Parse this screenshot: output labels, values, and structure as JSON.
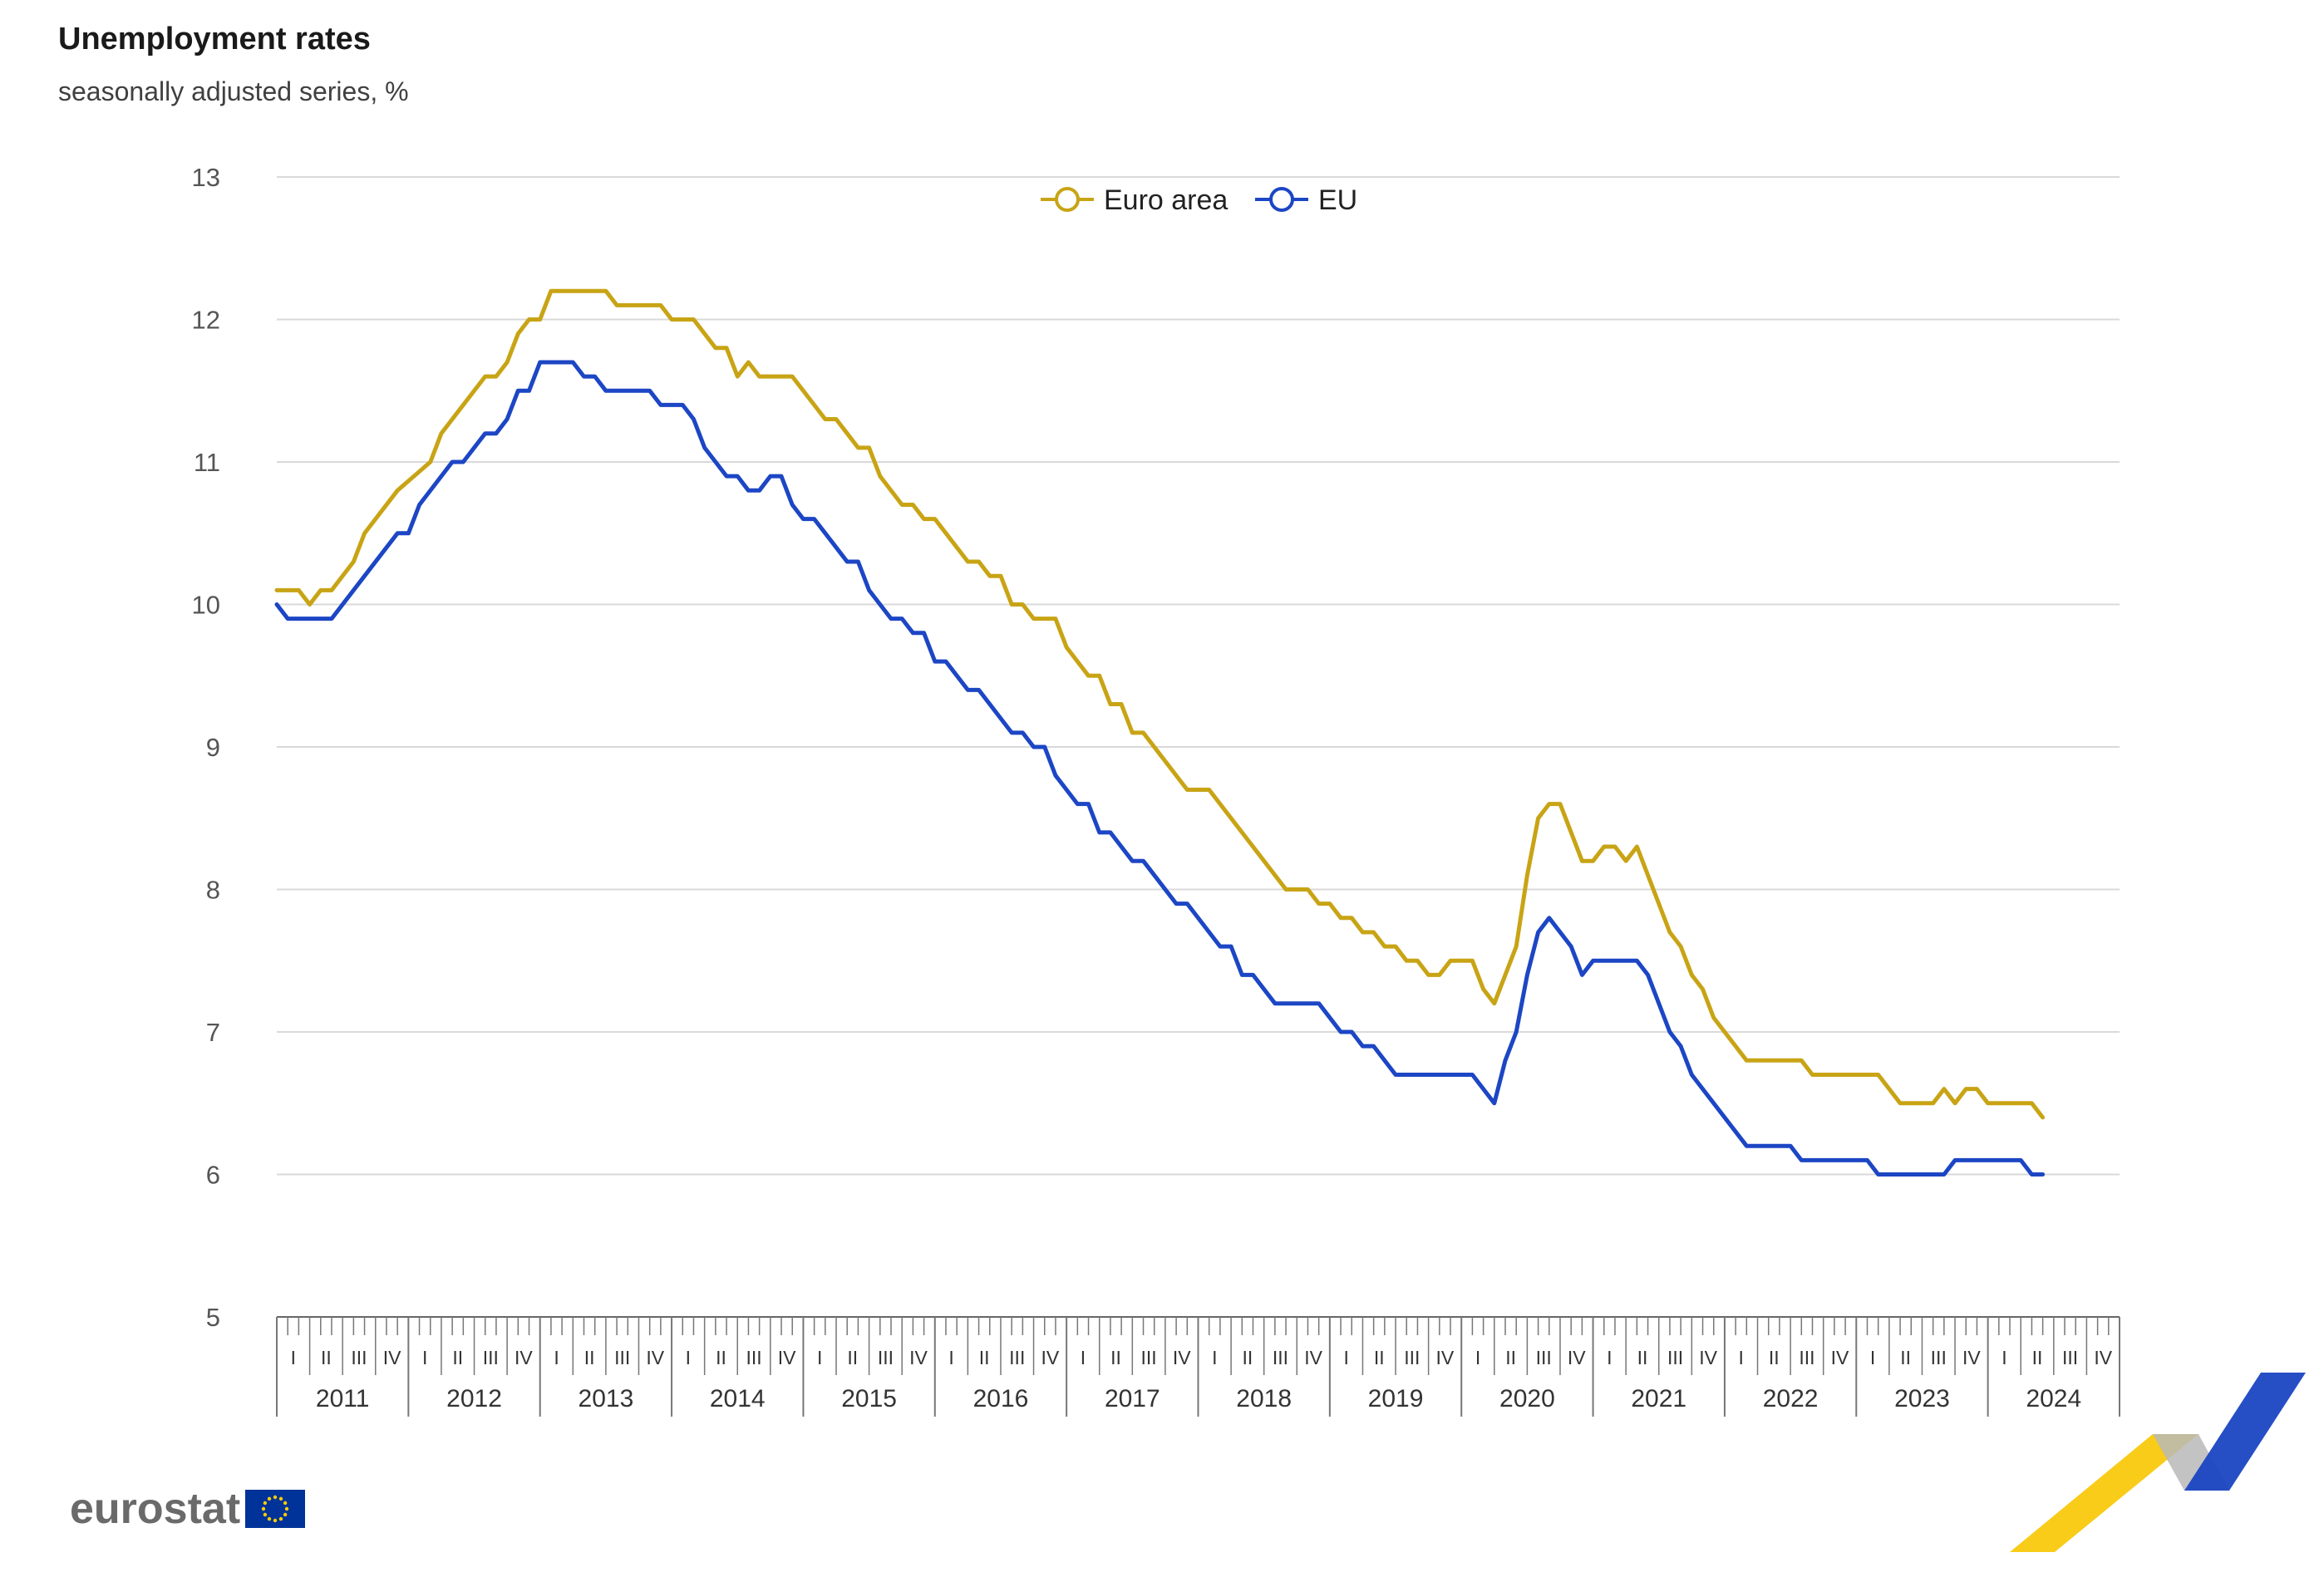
{
  "chart_data": {
    "type": "line",
    "title": "Unemployment rates",
    "subtitle": "seasonally adjusted series, %",
    "ylim": [
      5,
      13
    ],
    "yticks": [
      5,
      6,
      7,
      8,
      9,
      10,
      11,
      12,
      13
    ],
    "grid": true,
    "legend_position": "top-center",
    "x_start": "2011-01",
    "x_end": "2024-12",
    "years": [
      "2011",
      "2012",
      "2013",
      "2014",
      "2015",
      "2016",
      "2017",
      "2018",
      "2019",
      "2020",
      "2021",
      "2022",
      "2023",
      "2024"
    ],
    "quarters": [
      "I",
      "II",
      "III",
      "IV"
    ],
    "series": [
      {
        "name": "Euro area",
        "color": "#c8a415",
        "points": [
          [
            "2011-01",
            10.1
          ],
          [
            "2011-03",
            10.1
          ],
          [
            "2011-04",
            10.0
          ],
          [
            "2011-05",
            10.1
          ],
          [
            "2011-06",
            10.1
          ],
          [
            "2011-08",
            10.3
          ],
          [
            "2011-09",
            10.5
          ],
          [
            "2011-12",
            10.8
          ],
          [
            "2012-03",
            11.0
          ],
          [
            "2012-04",
            11.2
          ],
          [
            "2012-08",
            11.6
          ],
          [
            "2012-09",
            11.6
          ],
          [
            "2012-10",
            11.7
          ],
          [
            "2012-11",
            11.9
          ],
          [
            "2012-12",
            12.0
          ],
          [
            "2013-01",
            12.0
          ],
          [
            "2013-02",
            12.2
          ],
          [
            "2013-07",
            12.2
          ],
          [
            "2013-08",
            12.1
          ],
          [
            "2013-12",
            12.1
          ],
          [
            "2014-01",
            12.0
          ],
          [
            "2014-03",
            12.0
          ],
          [
            "2014-05",
            11.8
          ],
          [
            "2014-06",
            11.8
          ],
          [
            "2014-07",
            11.6
          ],
          [
            "2014-08",
            11.7
          ],
          [
            "2014-09",
            11.6
          ],
          [
            "2014-12",
            11.6
          ],
          [
            "2015-03",
            11.3
          ],
          [
            "2015-04",
            11.3
          ],
          [
            "2015-06",
            11.1
          ],
          [
            "2015-07",
            11.1
          ],
          [
            "2015-08",
            10.9
          ],
          [
            "2015-10",
            10.7
          ],
          [
            "2015-11",
            10.7
          ],
          [
            "2015-12",
            10.6
          ],
          [
            "2016-01",
            10.6
          ],
          [
            "2016-04",
            10.3
          ],
          [
            "2016-05",
            10.3
          ],
          [
            "2016-06",
            10.2
          ],
          [
            "2016-07",
            10.2
          ],
          [
            "2016-08",
            10.0
          ],
          [
            "2016-09",
            10.0
          ],
          [
            "2016-10",
            9.9
          ],
          [
            "2016-12",
            9.9
          ],
          [
            "2017-01",
            9.7
          ],
          [
            "2017-03",
            9.5
          ],
          [
            "2017-04",
            9.5
          ],
          [
            "2017-05",
            9.3
          ],
          [
            "2017-06",
            9.3
          ],
          [
            "2017-07",
            9.1
          ],
          [
            "2017-08",
            9.1
          ],
          [
            "2017-12",
            8.7
          ],
          [
            "2018-02",
            8.7
          ],
          [
            "2018-08",
            8.1
          ],
          [
            "2018-09",
            8.0
          ],
          [
            "2018-11",
            8.0
          ],
          [
            "2018-12",
            7.9
          ],
          [
            "2019-01",
            7.9
          ],
          [
            "2019-02",
            7.8
          ],
          [
            "2019-03",
            7.8
          ],
          [
            "2019-04",
            7.7
          ],
          [
            "2019-05",
            7.7
          ],
          [
            "2019-06",
            7.6
          ],
          [
            "2019-07",
            7.6
          ],
          [
            "2019-08",
            7.5
          ],
          [
            "2019-09",
            7.5
          ],
          [
            "2019-10",
            7.4
          ],
          [
            "2019-11",
            7.4
          ],
          [
            "2019-12",
            7.5
          ],
          [
            "2020-02",
            7.5
          ],
          [
            "2020-03",
            7.3
          ],
          [
            "2020-04",
            7.2
          ],
          [
            "2020-06",
            7.6
          ],
          [
            "2020-07",
            8.1
          ],
          [
            "2020-08",
            8.5
          ],
          [
            "2020-09",
            8.6
          ],
          [
            "2020-10",
            8.6
          ],
          [
            "2020-12",
            8.2
          ],
          [
            "2021-01",
            8.2
          ],
          [
            "2021-02",
            8.3
          ],
          [
            "2021-03",
            8.3
          ],
          [
            "2021-04",
            8.2
          ],
          [
            "2021-05",
            8.3
          ],
          [
            "2021-08",
            7.7
          ],
          [
            "2021-09",
            7.6
          ],
          [
            "2021-10",
            7.4
          ],
          [
            "2021-11",
            7.3
          ],
          [
            "2021-12",
            7.1
          ],
          [
            "2022-03",
            6.8
          ],
          [
            "2022-08",
            6.8
          ],
          [
            "2022-09",
            6.7
          ],
          [
            "2022-12",
            6.7
          ],
          [
            "2023-03",
            6.7
          ],
          [
            "2023-05",
            6.5
          ],
          [
            "2023-08",
            6.5
          ],
          [
            "2023-09",
            6.6
          ],
          [
            "2023-10",
            6.5
          ],
          [
            "2023-11",
            6.6
          ],
          [
            "2023-12",
            6.6
          ],
          [
            "2024-01",
            6.5
          ],
          [
            "2024-05",
            6.5
          ],
          [
            "2024-06",
            6.4
          ]
        ]
      },
      {
        "name": "EU",
        "color": "#1c46c4",
        "points": [
          [
            "2011-01",
            10.0
          ],
          [
            "2011-02",
            9.9
          ],
          [
            "2011-06",
            9.9
          ],
          [
            "2011-09",
            10.2
          ],
          [
            "2011-12",
            10.5
          ],
          [
            "2012-01",
            10.5
          ],
          [
            "2012-02",
            10.7
          ],
          [
            "2012-05",
            11.0
          ],
          [
            "2012-06",
            11.0
          ],
          [
            "2012-08",
            11.2
          ],
          [
            "2012-09",
            11.2
          ],
          [
            "2012-10",
            11.3
          ],
          [
            "2012-11",
            11.5
          ],
          [
            "2012-12",
            11.5
          ],
          [
            "2013-01",
            11.7
          ],
          [
            "2013-04",
            11.7
          ],
          [
            "2013-05",
            11.6
          ],
          [
            "2013-06",
            11.6
          ],
          [
            "2013-07",
            11.5
          ],
          [
            "2013-11",
            11.5
          ],
          [
            "2013-12",
            11.4
          ],
          [
            "2014-02",
            11.4
          ],
          [
            "2014-03",
            11.3
          ],
          [
            "2014-04",
            11.1
          ],
          [
            "2014-06",
            10.9
          ],
          [
            "2014-07",
            10.9
          ],
          [
            "2014-08",
            10.8
          ],
          [
            "2014-09",
            10.8
          ],
          [
            "2014-10",
            10.9
          ],
          [
            "2014-11",
            10.9
          ],
          [
            "2014-12",
            10.7
          ],
          [
            "2015-01",
            10.6
          ],
          [
            "2015-02",
            10.6
          ],
          [
            "2015-05",
            10.3
          ],
          [
            "2015-06",
            10.3
          ],
          [
            "2015-07",
            10.1
          ],
          [
            "2015-09",
            9.9
          ],
          [
            "2015-10",
            9.9
          ],
          [
            "2015-11",
            9.8
          ],
          [
            "2015-12",
            9.8
          ],
          [
            "2016-01",
            9.6
          ],
          [
            "2016-02",
            9.6
          ],
          [
            "2016-04",
            9.4
          ],
          [
            "2016-05",
            9.4
          ],
          [
            "2016-08",
            9.1
          ],
          [
            "2016-09",
            9.1
          ],
          [
            "2016-10",
            9.0
          ],
          [
            "2016-11",
            9.0
          ],
          [
            "2016-12",
            8.8
          ],
          [
            "2017-02",
            8.6
          ],
          [
            "2017-03",
            8.6
          ],
          [
            "2017-04",
            8.4
          ],
          [
            "2017-05",
            8.4
          ],
          [
            "2017-07",
            8.2
          ],
          [
            "2017-08",
            8.2
          ],
          [
            "2017-11",
            7.9
          ],
          [
            "2017-12",
            7.9
          ],
          [
            "2018-03",
            7.6
          ],
          [
            "2018-04",
            7.6
          ],
          [
            "2018-05",
            7.4
          ],
          [
            "2018-06",
            7.4
          ],
          [
            "2018-08",
            7.2
          ],
          [
            "2018-12",
            7.2
          ],
          [
            "2019-02",
            7.0
          ],
          [
            "2019-03",
            7.0
          ],
          [
            "2019-04",
            6.9
          ],
          [
            "2019-05",
            6.9
          ],
          [
            "2019-07",
            6.7
          ],
          [
            "2020-02",
            6.7
          ],
          [
            "2020-04",
            6.5
          ],
          [
            "2020-05",
            6.8
          ],
          [
            "2020-06",
            7.0
          ],
          [
            "2020-07",
            7.4
          ],
          [
            "2020-08",
            7.7
          ],
          [
            "2020-09",
            7.8
          ],
          [
            "2020-11",
            7.6
          ],
          [
            "2020-12",
            7.4
          ],
          [
            "2021-01",
            7.5
          ],
          [
            "2021-05",
            7.5
          ],
          [
            "2021-06",
            7.4
          ],
          [
            "2021-08",
            7.0
          ],
          [
            "2021-09",
            6.9
          ],
          [
            "2021-10",
            6.7
          ],
          [
            "2022-03",
            6.2
          ],
          [
            "2022-07",
            6.2
          ],
          [
            "2022-08",
            6.1
          ],
          [
            "2023-02",
            6.1
          ],
          [
            "2023-03",
            6.0
          ],
          [
            "2023-09",
            6.0
          ],
          [
            "2023-10",
            6.1
          ],
          [
            "2024-04",
            6.1
          ],
          [
            "2024-05",
            6.0
          ],
          [
            "2024-06",
            6.0
          ]
        ]
      }
    ]
  },
  "brand": {
    "logo_text": "eurostat",
    "flag_color": "#003399",
    "flag_star_color": "#ffcc00"
  }
}
